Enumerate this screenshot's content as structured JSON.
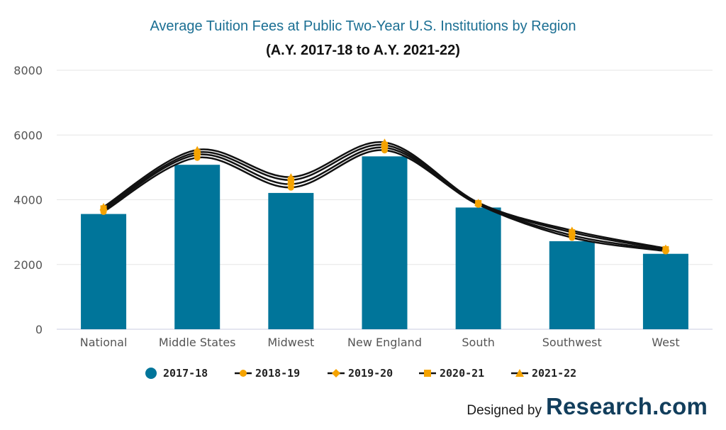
{
  "chart_data": {
    "type": "bar",
    "title": "Average Tuition Fees at Public Two-Year U.S. Institutions by Region",
    "subtitle": "(A.Y. 2017-18 to A.Y. 2021-22)",
    "categories": [
      "National",
      "Middle States",
      "Midwest",
      "New England",
      "South",
      "Southwest",
      "West"
    ],
    "ylim": [
      0,
      8000
    ],
    "yticks": [
      0,
      2000,
      4000,
      6000,
      8000
    ],
    "grid": true,
    "legend_position": "bottom",
    "series": [
      {
        "name": "2017-18",
        "type": "bar",
        "marker": "circle",
        "color": "#00759a",
        "values": [
          3560,
          5080,
          4210,
          5340,
          3760,
          2720,
          2330
        ]
      },
      {
        "name": "2018-19",
        "type": "line",
        "marker": "circle",
        "color": "#f5a300",
        "values": [
          3630,
          5300,
          4380,
          5530,
          3850,
          2830,
          2410
        ]
      },
      {
        "name": "2019-20",
        "type": "line",
        "marker": "diamond",
        "color": "#f5a300",
        "values": [
          3680,
          5390,
          4480,
          5610,
          3870,
          2900,
          2440
        ]
      },
      {
        "name": "2020-21",
        "type": "line",
        "marker": "square",
        "color": "#f5a300",
        "values": [
          3730,
          5460,
          4610,
          5690,
          3890,
          2990,
          2470
        ]
      },
      {
        "name": "2021-22",
        "type": "line",
        "marker": "triangle",
        "color": "#f5a300",
        "values": [
          3780,
          5540,
          4700,
          5770,
          3910,
          3050,
          2500
        ]
      }
    ]
  },
  "credit": {
    "prefix": "Designed by",
    "brand": "Research.com"
  }
}
